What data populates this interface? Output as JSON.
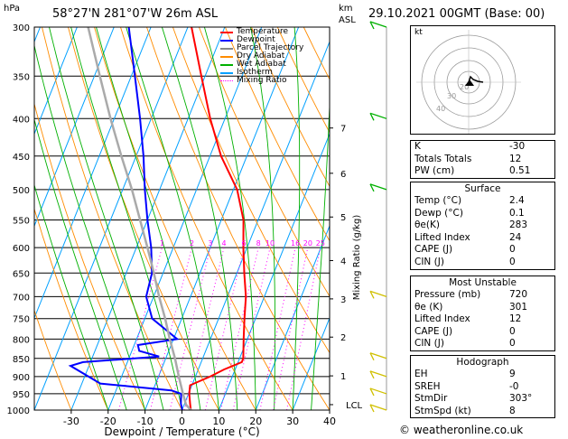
{
  "header": {
    "hpa_label": "hPa",
    "station": "58°27'N  281°07'W  26m  ASL",
    "km_label": "km",
    "asl_label": "ASL",
    "datetime": "29.10.2021  00GMT  (Base: 00)"
  },
  "legend": {
    "items": [
      {
        "label": "Temperature",
        "color": "#ff0000"
      },
      {
        "label": "Dewpoint",
        "color": "#0000ff"
      },
      {
        "label": "Parcel Trajectory",
        "color": "#888888"
      },
      {
        "label": "Dry Adiabat",
        "color": "#ff8c00"
      },
      {
        "label": "Wet Adiabat",
        "color": "#00b000"
      },
      {
        "label": "Isotherm",
        "color": "#00a0ff"
      },
      {
        "label": "Mixing Ratio",
        "color": "#ff00ff"
      }
    ]
  },
  "chart_data": {
    "type": "line",
    "title": "",
    "xlabel": "Dewpoint / Temperature (°C)",
    "ylabel_right": "Mixing Ratio (g/kg)",
    "xlim": [
      -40,
      40
    ],
    "pressure_range_hpa": [
      300,
      1000
    ],
    "pressure_ticks": [
      300,
      350,
      400,
      450,
      500,
      550,
      600,
      650,
      700,
      750,
      800,
      850,
      900,
      950,
      1000
    ],
    "x_ticks": [
      -30,
      -20,
      -10,
      0,
      10,
      20,
      30,
      40
    ],
    "km_ticks": [
      {
        "label": "7",
        "p": 412
      },
      {
        "label": "6",
        "p": 475
      },
      {
        "label": "5",
        "p": 545
      },
      {
        "label": "4",
        "p": 625
      },
      {
        "label": "3",
        "p": 705
      },
      {
        "label": "2",
        "p": 795
      },
      {
        "label": "1",
        "p": 898
      },
      {
        "label": "LCL",
        "p": 983
      }
    ],
    "mixing_ratio_labels": [
      "1",
      "2",
      "3",
      "4",
      "6",
      "8",
      "10",
      "16",
      "20",
      "25"
    ],
    "series": [
      {
        "name": "Temperature",
        "color": "#ff0000",
        "points": [
          {
            "p": 1000,
            "t": 2.4
          },
          {
            "p": 980,
            "t": 1.5
          },
          {
            "p": 950,
            "t": 0.2
          },
          {
            "p": 925,
            "t": -0.5
          },
          {
            "p": 900,
            "t": 4
          },
          {
            "p": 880,
            "t": 7
          },
          {
            "p": 860,
            "t": 11
          },
          {
            "p": 850,
            "t": 11
          },
          {
            "p": 800,
            "t": 9
          },
          {
            "p": 750,
            "t": 7
          },
          {
            "p": 700,
            "t": 5
          },
          {
            "p": 650,
            "t": 2
          },
          {
            "p": 600,
            "t": -1
          },
          {
            "p": 550,
            "t": -4
          },
          {
            "p": 500,
            "t": -9
          },
          {
            "p": 450,
            "t": -17
          },
          {
            "p": 400,
            "t": -24
          },
          {
            "p": 350,
            "t": -31
          },
          {
            "p": 300,
            "t": -39
          }
        ]
      },
      {
        "name": "Dewpoint",
        "color": "#0000ff",
        "points": [
          {
            "p": 1000,
            "t": 0.1
          },
          {
            "p": 980,
            "t": -1
          },
          {
            "p": 950,
            "t": -2
          },
          {
            "p": 940,
            "t": -5
          },
          {
            "p": 920,
            "t": -25
          },
          {
            "p": 870,
            "t": -35
          },
          {
            "p": 860,
            "t": -32
          },
          {
            "p": 845,
            "t": -12
          },
          {
            "p": 830,
            "t": -18
          },
          {
            "p": 815,
            "t": -19
          },
          {
            "p": 800,
            "t": -9
          },
          {
            "p": 750,
            "t": -18
          },
          {
            "p": 700,
            "t": -22
          },
          {
            "p": 650,
            "t": -23
          },
          {
            "p": 600,
            "t": -26
          },
          {
            "p": 550,
            "t": -30
          },
          {
            "p": 500,
            "t": -34
          },
          {
            "p": 450,
            "t": -38
          },
          {
            "p": 400,
            "t": -43
          },
          {
            "p": 350,
            "t": -49
          },
          {
            "p": 300,
            "t": -56
          }
        ]
      },
      {
        "name": "Parcel Trajectory",
        "color": "#aaaaaa",
        "points": [
          {
            "p": 1000,
            "t": 2.4
          },
          {
            "p": 983,
            "t": 0.5
          },
          {
            "p": 950,
            "t": -1.5
          },
          {
            "p": 900,
            "t": -4.5
          },
          {
            "p": 850,
            "t": -7.5
          },
          {
            "p": 800,
            "t": -11
          },
          {
            "p": 750,
            "t": -14.5
          },
          {
            "p": 700,
            "t": -18.5
          },
          {
            "p": 650,
            "t": -22.5
          },
          {
            "p": 600,
            "t": -27
          },
          {
            "p": 550,
            "t": -32
          },
          {
            "p": 500,
            "t": -37.5
          },
          {
            "p": 450,
            "t": -44
          },
          {
            "p": 400,
            "t": -51
          },
          {
            "p": 350,
            "t": -58.5
          },
          {
            "p": 300,
            "t": -67
          }
        ]
      }
    ]
  },
  "hodograph": {
    "unit_label": "kt",
    "ring_labels": [
      "10",
      "20",
      "30",
      "40"
    ]
  },
  "indices": {
    "rows": [
      {
        "label": "K",
        "value": "-30"
      },
      {
        "label": "Totals Totals",
        "value": "12"
      },
      {
        "label": "PW (cm)",
        "value": "0.51"
      }
    ]
  },
  "surface": {
    "title": "Surface",
    "rows": [
      {
        "label": "Temp (°C)",
        "value": "2.4"
      },
      {
        "label": "Dewp (°C)",
        "value": "0.1"
      },
      {
        "label": "θe(K)",
        "value": "283"
      },
      {
        "label": "Lifted Index",
        "value": "24"
      },
      {
        "label": "CAPE (J)",
        "value": "0"
      },
      {
        "label": "CIN (J)",
        "value": "0"
      }
    ]
  },
  "most_unstable": {
    "title": "Most Unstable",
    "rows": [
      {
        "label": "Pressure (mb)",
        "value": "720"
      },
      {
        "label": "θe (K)",
        "value": "301"
      },
      {
        "label": "Lifted Index",
        "value": "12"
      },
      {
        "label": "CAPE (J)",
        "value": "0"
      },
      {
        "label": "CIN (J)",
        "value": "0"
      }
    ]
  },
  "hodograph_table": {
    "title": "Hodograph",
    "rows": [
      {
        "label": "EH",
        "value": "9"
      },
      {
        "label": "SREH",
        "value": "-0"
      },
      {
        "label": "StmDir",
        "value": "303°"
      },
      {
        "label": "StmSpd (kt)",
        "value": "8"
      }
    ]
  },
  "footer": "© weatheronline.co.uk"
}
